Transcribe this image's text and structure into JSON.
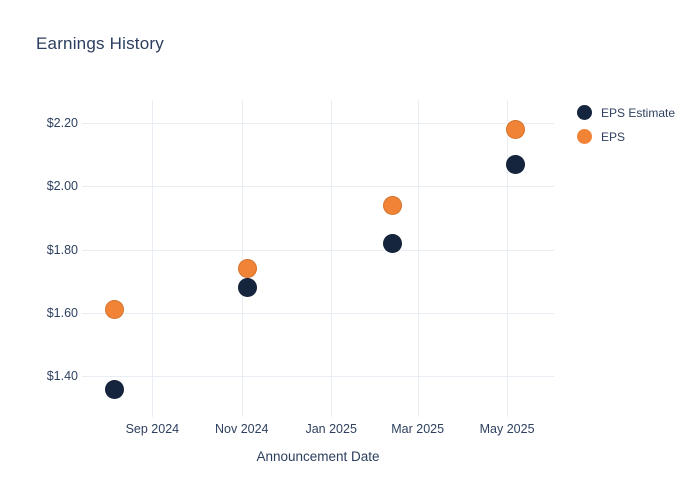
{
  "chart_data": {
    "type": "scatter",
    "title": "Earnings History",
    "xlabel": "Announcement Date",
    "ylabel": "",
    "grid": true,
    "legend_position": "right-top",
    "xlim": [
      "2024-07-15",
      "2025-06-02"
    ],
    "ylim": [
      1.272,
      2.272
    ],
    "x_ticks": [
      {
        "label": "Sep 2024",
        "date": "2024-09-01"
      },
      {
        "label": "Nov 2024",
        "date": "2024-11-01"
      },
      {
        "label": "Jan 2025",
        "date": "2025-01-01"
      },
      {
        "label": "Mar 2025",
        "date": "2025-03-01"
      },
      {
        "label": "May 2025",
        "date": "2025-05-01"
      }
    ],
    "y_ticks": [
      {
        "label": "$1.40",
        "value": 1.4
      },
      {
        "label": "$1.60",
        "value": 1.6
      },
      {
        "label": "$1.80",
        "value": 1.8
      },
      {
        "label": "$2.00",
        "value": 2.0
      },
      {
        "label": "$2.20",
        "value": 2.2
      }
    ],
    "series": [
      {
        "name": "EPS Estimate",
        "color": "#16253E",
        "points": [
          {
            "x": "2024-08-06",
            "y": 1.36
          },
          {
            "x": "2024-11-05",
            "y": 1.68
          },
          {
            "x": "2025-02-12",
            "y": 1.82
          },
          {
            "x": "2025-05-07",
            "y": 2.07
          }
        ]
      },
      {
        "name": "EPS",
        "color": "#F18336",
        "points": [
          {
            "x": "2024-08-06",
            "y": 1.61
          },
          {
            "x": "2024-11-05",
            "y": 1.74
          },
          {
            "x": "2025-02-12",
            "y": 1.94
          },
          {
            "x": "2025-05-07",
            "y": 2.18
          }
        ]
      }
    ]
  }
}
